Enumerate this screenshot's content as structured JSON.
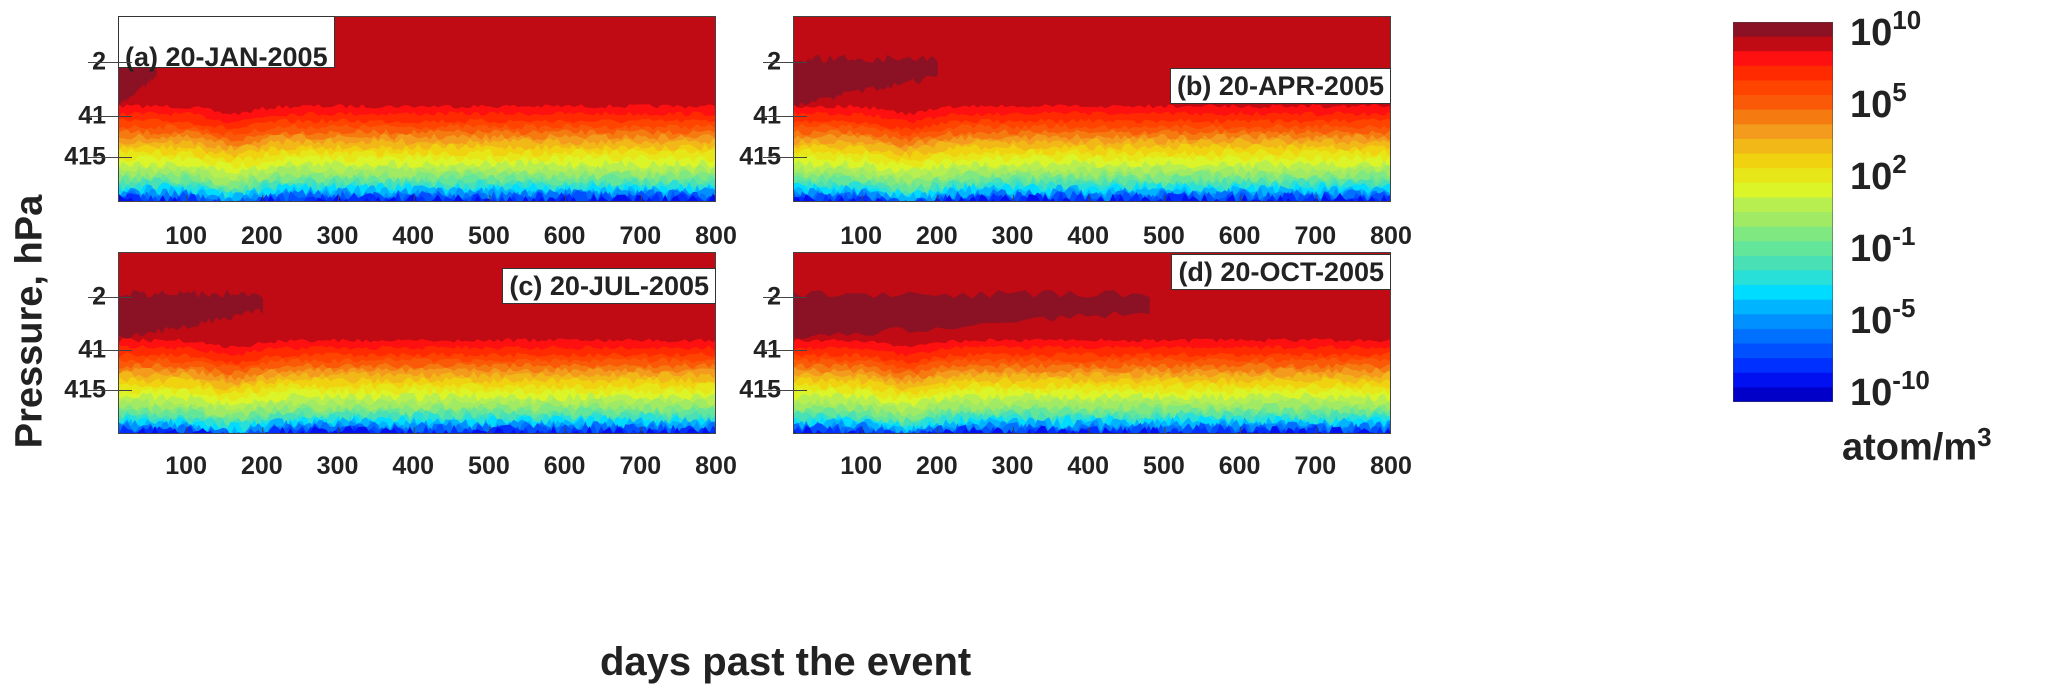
{
  "chart_data": {
    "type": "heatmap",
    "xlabel": "days past the event",
    "ylabel": "Pressure, hPa",
    "xlim": [
      10,
      800
    ],
    "ylim": [
      0.16,
      5000
    ],
    "yscale": "log",
    "xticks": [
      100,
      200,
      300,
      400,
      500,
      600,
      700,
      800
    ],
    "yticks": [
      "2",
      "41",
      "415"
    ],
    "yticks_values": [
      2,
      41,
      415
    ],
    "panels": [
      {
        "id": "a",
        "title": "(a) 20-JAN-2005",
        "dark_patch_until_day": 60
      },
      {
        "id": "b",
        "title": "(b) 20-APR-2005",
        "dark_patch_until_day": 200
      },
      {
        "id": "c",
        "title": "(c) 20-JUL-2005",
        "dark_patch_until_day": 200
      },
      {
        "id": "d",
        "title": "(d) 20-OCT-2005",
        "dark_patch_until_day": 480
      }
    ],
    "colorbar": {
      "label": "atom/m",
      "label_exp": "3",
      "scale": "log",
      "range_exp": [
        -10,
        10
      ],
      "ticks": [
        {
          "base": "10",
          "exp": "10"
        },
        {
          "base": "10",
          "exp": "5"
        },
        {
          "base": "10",
          "exp": "2"
        },
        {
          "base": "10",
          "exp": "-1"
        },
        {
          "base": "10",
          "exp": "-5"
        },
        {
          "base": "10",
          "exp": "-10"
        }
      ],
      "colors": [
        "#8a1224",
        "#c00a14",
        "#ff1010",
        "#ff2a00",
        "#ff4400",
        "#fa5a08",
        "#f57a10",
        "#f49a1c",
        "#f2b818",
        "#f0d210",
        "#e6e619",
        "#dcf528",
        "#b8ef50",
        "#a0ea64",
        "#80e880",
        "#64e69a",
        "#48e0b4",
        "#28e0d8",
        "#00dcff",
        "#00b4ff",
        "#0090ff",
        "#0070ff",
        "#0050ff",
        "#0030ff",
        "#0010f0",
        "#0000c8"
      ]
    }
  }
}
